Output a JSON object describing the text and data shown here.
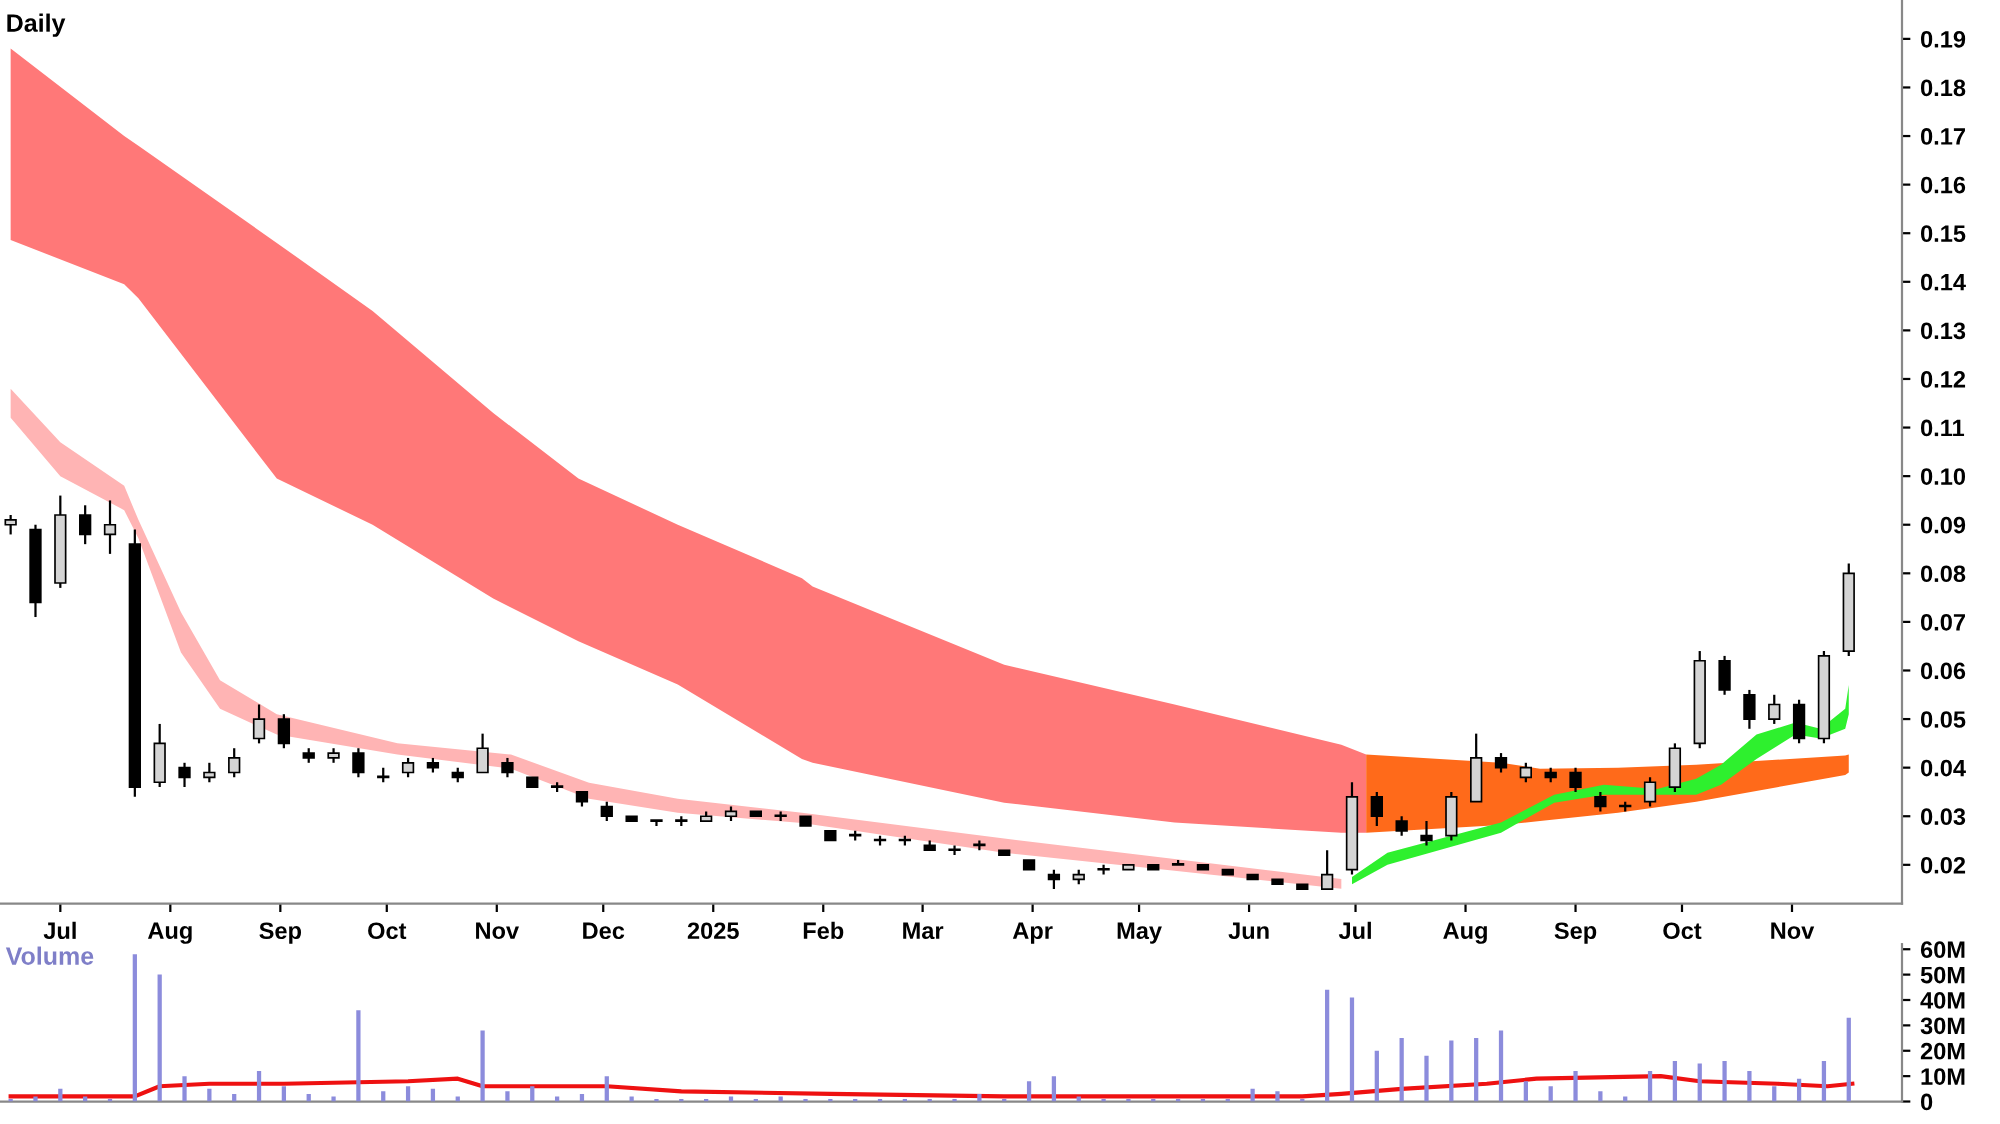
{
  "chart_data": [
    {
      "type": "candlestick",
      "title": "Daily",
      "x": [
        "2024-06-17",
        "2024-06-24",
        "2024-07-01",
        "2024-07-08",
        "2024-07-15",
        "2024-07-22",
        "2024-07-29",
        "2024-08-05",
        "2024-08-12",
        "2024-08-19",
        "2024-08-26",
        "2024-09-02",
        "2024-09-09",
        "2024-09-16",
        "2024-09-23",
        "2024-09-30",
        "2024-10-07",
        "2024-10-14",
        "2024-10-21",
        "2024-10-28",
        "2024-11-04",
        "2024-11-11",
        "2024-11-18",
        "2024-11-25",
        "2024-12-02",
        "2024-12-09",
        "2024-12-16",
        "2024-12-23",
        "2024-12-30",
        "2025-01-06",
        "2025-01-13",
        "2025-01-20",
        "2025-01-27",
        "2025-02-03",
        "2025-02-10",
        "2025-02-17",
        "2025-02-24",
        "2025-03-03",
        "2025-03-10",
        "2025-03-17",
        "2025-03-24",
        "2025-03-31",
        "2025-04-07",
        "2025-04-14",
        "2025-04-21",
        "2025-04-28",
        "2025-05-05",
        "2025-05-12",
        "2025-05-19",
        "2025-05-26",
        "2025-06-02",
        "2025-06-09",
        "2025-06-16",
        "2025-06-23",
        "2025-06-30",
        "2025-07-07",
        "2025-07-14",
        "2025-07-21",
        "2025-07-28",
        "2025-08-04",
        "2025-08-11",
        "2025-08-18",
        "2025-08-25",
        "2025-09-01",
        "2025-09-08",
        "2025-09-15",
        "2025-09-22",
        "2025-09-29",
        "2025-10-06",
        "2025-10-13",
        "2025-10-20",
        "2025-10-27",
        "2025-11-03",
        "2025-11-10",
        "2025-11-17"
      ],
      "ohlc": [
        [
          0.09,
          0.092,
          0.088,
          0.091
        ],
        [
          0.089,
          0.09,
          0.071,
          0.074
        ],
        [
          0.078,
          0.096,
          0.077,
          0.092
        ],
        [
          0.092,
          0.094,
          0.086,
          0.088
        ],
        [
          0.088,
          0.095,
          0.084,
          0.09
        ],
        [
          0.086,
          0.089,
          0.034,
          0.036
        ],
        [
          0.037,
          0.049,
          0.036,
          0.045
        ],
        [
          0.04,
          0.041,
          0.036,
          0.038
        ],
        [
          0.038,
          0.041,
          0.037,
          0.039
        ],
        [
          0.039,
          0.044,
          0.038,
          0.042
        ],
        [
          0.046,
          0.053,
          0.045,
          0.05
        ],
        [
          0.05,
          0.051,
          0.044,
          0.045
        ],
        [
          0.043,
          0.044,
          0.041,
          0.042
        ],
        [
          0.042,
          0.044,
          0.041,
          0.043
        ],
        [
          0.043,
          0.044,
          0.038,
          0.039
        ],
        [
          0.038,
          0.04,
          0.037,
          0.038
        ],
        [
          0.039,
          0.042,
          0.038,
          0.041
        ],
        [
          0.041,
          0.042,
          0.039,
          0.04
        ],
        [
          0.039,
          0.04,
          0.037,
          0.038
        ],
        [
          0.039,
          0.047,
          0.039,
          0.044
        ],
        [
          0.041,
          0.042,
          0.038,
          0.039
        ],
        [
          0.038,
          0.038,
          0.036,
          0.036
        ],
        [
          0.036,
          0.037,
          0.035,
          0.036
        ],
        [
          0.035,
          0.035,
          0.032,
          0.033
        ],
        [
          0.032,
          0.033,
          0.029,
          0.03
        ],
        [
          0.03,
          0.03,
          0.029,
          0.029
        ],
        [
          0.029,
          0.029,
          0.028,
          0.029
        ],
        [
          0.029,
          0.03,
          0.028,
          0.029
        ],
        [
          0.029,
          0.031,
          0.029,
          0.03
        ],
        [
          0.03,
          0.032,
          0.029,
          0.031
        ],
        [
          0.031,
          0.031,
          0.03,
          0.03
        ],
        [
          0.03,
          0.031,
          0.029,
          0.03
        ],
        [
          0.03,
          0.03,
          0.028,
          0.028
        ],
        [
          0.027,
          0.027,
          0.025,
          0.025
        ],
        [
          0.026,
          0.027,
          0.025,
          0.026
        ],
        [
          0.025,
          0.026,
          0.024,
          0.025
        ],
        [
          0.025,
          0.026,
          0.024,
          0.025
        ],
        [
          0.024,
          0.025,
          0.023,
          0.023
        ],
        [
          0.023,
          0.024,
          0.022,
          0.023
        ],
        [
          0.024,
          0.025,
          0.023,
          0.024
        ],
        [
          0.023,
          0.023,
          0.022,
          0.022
        ],
        [
          0.021,
          0.021,
          0.019,
          0.019
        ],
        [
          0.018,
          0.019,
          0.015,
          0.017
        ],
        [
          0.017,
          0.019,
          0.016,
          0.018
        ],
        [
          0.019,
          0.02,
          0.018,
          0.019
        ],
        [
          0.019,
          0.02,
          0.019,
          0.02
        ],
        [
          0.02,
          0.02,
          0.019,
          0.019
        ],
        [
          0.02,
          0.021,
          0.02,
          0.02
        ],
        [
          0.02,
          0.02,
          0.019,
          0.019
        ],
        [
          0.019,
          0.019,
          0.018,
          0.018
        ],
        [
          0.018,
          0.018,
          0.017,
          0.017
        ],
        [
          0.017,
          0.017,
          0.016,
          0.016
        ],
        [
          0.016,
          0.016,
          0.015,
          0.015
        ],
        [
          0.015,
          0.023,
          0.015,
          0.018
        ],
        [
          0.019,
          0.037,
          0.018,
          0.034
        ],
        [
          0.034,
          0.035,
          0.028,
          0.03
        ],
        [
          0.029,
          0.03,
          0.026,
          0.027
        ],
        [
          0.026,
          0.029,
          0.024,
          0.025
        ],
        [
          0.026,
          0.035,
          0.025,
          0.034
        ],
        [
          0.033,
          0.047,
          0.033,
          0.042
        ],
        [
          0.042,
          0.043,
          0.039,
          0.04
        ],
        [
          0.038,
          0.041,
          0.037,
          0.04
        ],
        [
          0.039,
          0.04,
          0.037,
          0.038
        ],
        [
          0.039,
          0.04,
          0.035,
          0.036
        ],
        [
          0.034,
          0.035,
          0.031,
          0.032
        ],
        [
          0.032,
          0.033,
          0.031,
          0.032
        ],
        [
          0.033,
          0.038,
          0.032,
          0.037
        ],
        [
          0.036,
          0.045,
          0.035,
          0.044
        ],
        [
          0.045,
          0.064,
          0.044,
          0.062
        ],
        [
          0.062,
          0.063,
          0.055,
          0.056
        ],
        [
          0.055,
          0.056,
          0.048,
          0.05
        ],
        [
          0.05,
          0.055,
          0.049,
          0.053
        ],
        [
          0.053,
          0.054,
          0.045,
          0.046
        ],
        [
          0.046,
          0.064,
          0.045,
          0.063
        ],
        [
          0.064,
          0.082,
          0.063,
          0.08
        ]
      ],
      "series": [
        {
          "type": "area",
          "color": "#ff7878",
          "x": [
            "2024-06-17",
            "2024-07-19",
            "2024-07-23",
            "2024-08-31",
            "2024-09-27",
            "2024-10-31",
            "2024-11-24",
            "2024-12-22",
            "2025-01-26",
            "2025-01-29",
            "2025-03-24",
            "2025-05-11",
            "2025-06-27",
            "2025-07-04"
          ],
          "values": [
            null,
            null,
            null,
            null,
            null,
            null,
            null,
            null,
            null,
            null,
            null,
            null,
            null,
            null
          ],
          "upper": [
            0.188,
            0.17,
            0.168,
            0.148,
            0.134,
            0.113,
            0.0995,
            0.09,
            0.079,
            0.0773,
            0.0612,
            0.053,
            0.0447,
            0.0427
          ],
          "lower": [
            0.1486,
            0.1395,
            0.1366,
            0.0995,
            0.09,
            0.0748,
            0.066,
            0.0571,
            0.0418,
            0.041,
            0.0328,
            0.0287,
            0.0266,
            0.0266
          ]
        },
        {
          "type": "area",
          "color": "#ff6a1a",
          "x": [
            "2025-07-04",
            "2025-08-11",
            "2025-08-22",
            "2025-09-13",
            "2025-10-05",
            "2025-11-16",
            "2025-11-17"
          ],
          "values": [
            null,
            null,
            null,
            null,
            null,
            null,
            null
          ],
          "upper": [
            0.0427,
            0.041,
            0.0398,
            0.04,
            0.0406,
            0.0425,
            0.0427
          ],
          "lower": [
            0.0266,
            0.0282,
            0.029,
            0.0307,
            0.033,
            0.0385,
            0.039
          ]
        },
        {
          "type": "area",
          "color": "#ffb4b4",
          "x": [
            "2024-06-17",
            "2024-07-01",
            "2024-07-19",
            "2024-07-23",
            "2024-08-04",
            "2024-08-15",
            "2024-08-31",
            "2024-10-04",
            "2024-11-05",
            "2024-11-27",
            "2024-12-22",
            "2025-01-26",
            "2025-03-24",
            "2025-05-11",
            "2025-06-27"
          ],
          "values": [
            null,
            null,
            null,
            null,
            null,
            null,
            null,
            null,
            null,
            null,
            null,
            null,
            null,
            null,
            null
          ],
          "upper": [
            0.118,
            0.107,
            0.098,
            0.091,
            0.072,
            0.058,
            0.051,
            0.045,
            0.0427,
            0.0369,
            0.0336,
            0.0307,
            0.0254,
            0.0212,
            0.0171
          ],
          "lower": [
            0.112,
            0.1,
            0.093,
            0.0872,
            0.0637,
            0.0521,
            0.0468,
            0.0427,
            0.0398,
            0.0336,
            0.0307,
            0.0286,
            0.0225,
            0.0188,
            0.0151
          ]
        },
        {
          "type": "area",
          "color": "#2ef02e",
          "x": [
            "2025-06-30",
            "2025-07-10",
            "2025-08-11",
            "2025-08-26",
            "2025-09-09",
            "2025-09-24",
            "2025-10-05",
            "2025-10-12",
            "2025-10-22",
            "2025-11-02",
            "2025-11-09",
            "2025-11-16",
            "2025-11-17"
          ],
          "values": [
            null,
            null,
            null,
            null,
            null,
            null,
            null,
            null,
            null,
            null,
            null,
            null,
            null
          ],
          "upper": [
            0.0175,
            0.0225,
            0.0287,
            0.0344,
            0.0365,
            0.0356,
            0.0377,
            0.0406,
            0.0468,
            0.0493,
            0.048,
            0.0521,
            0.057
          ],
          "lower": [
            0.016,
            0.02,
            0.0266,
            0.0328,
            0.0344,
            0.0344,
            0.0344,
            0.0365,
            0.0418,
            0.0468,
            0.046,
            0.048,
            0.051
          ]
        }
      ],
      "xlim": [
        "2024-06-14",
        "2025-12-02"
      ],
      "xticks": [
        {
          "value": "2024-07-01",
          "label": "Jul"
        },
        {
          "value": "2024-08-01",
          "label": "Aug"
        },
        {
          "value": "2024-09-01",
          "label": "Sep"
        },
        {
          "value": "2024-10-01",
          "label": "Oct"
        },
        {
          "value": "2024-11-01",
          "label": "Nov"
        },
        {
          "value": "2024-12-01",
          "label": "Dec"
        },
        {
          "value": "2025-01-01",
          "label": "2025"
        },
        {
          "value": "2025-02-01",
          "label": "Feb"
        },
        {
          "value": "2025-03-01",
          "label": "Mar"
        },
        {
          "value": "2025-04-01",
          "label": "Apr"
        },
        {
          "value": "2025-05-01",
          "label": "May"
        },
        {
          "value": "2025-06-01",
          "label": "Jun"
        },
        {
          "value": "2025-07-01",
          "label": "Jul"
        },
        {
          "value": "2025-08-01",
          "label": "Aug"
        },
        {
          "value": "2025-09-01",
          "label": "Sep"
        },
        {
          "value": "2025-10-01",
          "label": "Oct"
        },
        {
          "value": "2025-11-01",
          "label": "Nov"
        }
      ],
      "ylim": [
        0.012,
        0.198
      ],
      "yticks": [
        {
          "value": 0.02,
          "label": "0.02"
        },
        {
          "value": 0.03,
          "label": "0.03"
        },
        {
          "value": 0.04,
          "label": "0.04"
        },
        {
          "value": 0.05,
          "label": "0.05"
        },
        {
          "value": 0.06,
          "label": "0.06"
        },
        {
          "value": 0.07,
          "label": "0.07"
        },
        {
          "value": 0.08,
          "label": "0.08"
        },
        {
          "value": 0.09,
          "label": "0.09"
        },
        {
          "value": 0.1,
          "label": "0.10"
        },
        {
          "value": 0.11,
          "label": "0.11"
        },
        {
          "value": 0.12,
          "label": "0.12"
        },
        {
          "value": 0.13,
          "label": "0.13"
        },
        {
          "value": 0.14,
          "label": "0.14"
        },
        {
          "value": 0.15,
          "label": "0.15"
        },
        {
          "value": 0.16,
          "label": "0.16"
        },
        {
          "value": 0.17,
          "label": "0.17"
        },
        {
          "value": 0.18,
          "label": "0.18"
        },
        {
          "value": 0.19,
          "label": "0.19"
        }
      ]
    },
    {
      "type": "bar",
      "title": "Volume",
      "x": [
        "2024-06-17",
        "2024-06-24",
        "2024-07-01",
        "2024-07-08",
        "2024-07-15",
        "2024-07-22",
        "2024-07-29",
        "2024-08-05",
        "2024-08-12",
        "2024-08-19",
        "2024-08-26",
        "2024-09-02",
        "2024-09-09",
        "2024-09-16",
        "2024-09-23",
        "2024-09-30",
        "2024-10-07",
        "2024-10-14",
        "2024-10-21",
        "2024-10-28",
        "2024-11-04",
        "2024-11-11",
        "2024-11-18",
        "2024-11-25",
        "2024-12-02",
        "2024-12-09",
        "2024-12-16",
        "2024-12-23",
        "2024-12-30",
        "2025-01-06",
        "2025-01-13",
        "2025-01-20",
        "2025-01-27",
        "2025-02-03",
        "2025-02-10",
        "2025-02-17",
        "2025-02-24",
        "2025-03-03",
        "2025-03-10",
        "2025-03-17",
        "2025-03-24",
        "2025-03-31",
        "2025-04-07",
        "2025-04-14",
        "2025-04-21",
        "2025-04-28",
        "2025-05-05",
        "2025-05-12",
        "2025-05-19",
        "2025-05-26",
        "2025-06-02",
        "2025-06-09",
        "2025-06-16",
        "2025-06-23",
        "2025-06-30",
        "2025-07-07",
        "2025-07-14",
        "2025-07-21",
        "2025-07-28",
        "2025-08-04",
        "2025-08-11",
        "2025-08-18",
        "2025-08-25",
        "2025-09-01",
        "2025-09-08",
        "2025-09-15",
        "2025-09-22",
        "2025-09-29",
        "2025-10-06",
        "2025-10-13",
        "2025-10-20",
        "2025-10-27",
        "2025-11-03",
        "2025-11-10",
        "2025-11-17"
      ],
      "series": [
        {
          "type": "bar",
          "color": "#8c8cdc",
          "values": [
            1,
            2,
            5,
            2,
            1,
            58,
            50,
            10,
            5,
            3,
            12,
            6,
            3,
            2,
            36,
            4,
            6,
            5,
            2,
            28,
            4,
            6,
            2,
            3,
            10,
            2,
            1,
            1,
            1,
            2,
            1,
            2,
            1,
            1,
            1,
            1,
            1,
            1,
            1,
            3,
            1,
            8,
            10,
            2,
            1,
            1,
            1,
            1,
            1,
            1,
            5,
            4,
            1,
            44,
            41,
            20,
            25,
            18,
            24,
            25,
            28,
            8,
            6,
            12,
            4,
            2,
            12,
            16,
            15,
            16,
            12,
            6,
            9,
            16,
            33
          ]
        },
        {
          "type": "line",
          "color": "#ee1111",
          "x": [
            "2024-06-17",
            "2024-07-22",
            "2024-07-29",
            "2024-08-12",
            "2024-09-02",
            "2024-10-07",
            "2024-10-21",
            "2024-10-28",
            "2024-12-02",
            "2024-12-23",
            "2025-02-03",
            "2025-03-24",
            "2025-06-16",
            "2025-06-27",
            "2025-07-14",
            "2025-08-07",
            "2025-08-21",
            "2025-09-25",
            "2025-10-06",
            "2025-10-28",
            "2025-11-11",
            "2025-11-18"
          ],
          "values": [
            2,
            2,
            6,
            7,
            7,
            8,
            9,
            6,
            6,
            4,
            3,
            2,
            2,
            3,
            5,
            7,
            9,
            10,
            8,
            7,
            6,
            7
          ]
        }
      ],
      "xlim": [
        "2024-06-14",
        "2025-12-02"
      ],
      "ylim": [
        0,
        62
      ],
      "yticks": [
        {
          "value": 0,
          "label": "0"
        },
        {
          "value": 10,
          "label": "10M"
        },
        {
          "value": 20,
          "label": "20M"
        },
        {
          "value": 30,
          "label": "30M"
        },
        {
          "value": 40,
          "label": "40M"
        },
        {
          "value": 50,
          "label": "50M"
        },
        {
          "value": 60,
          "label": "60M"
        }
      ],
      "tick_labels": "y"
    }
  ]
}
